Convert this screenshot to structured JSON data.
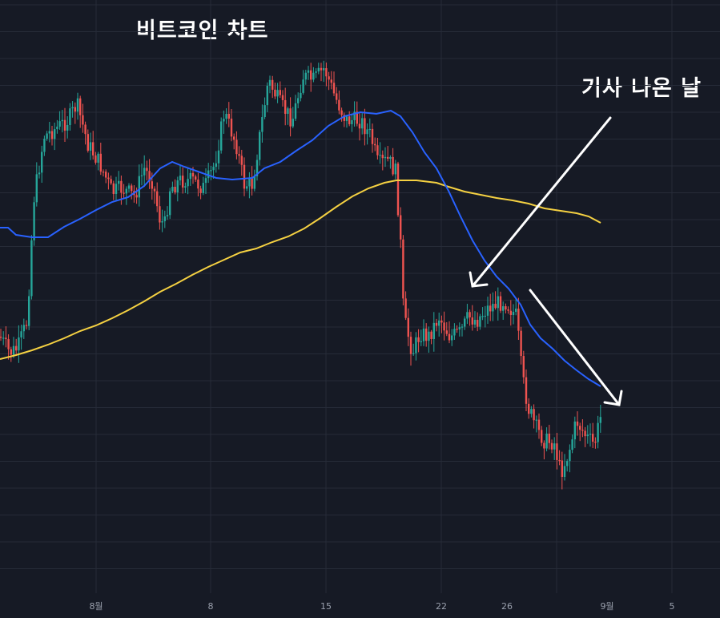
{
  "chart_data": {
    "type": "candlestick",
    "title": "비트코인 차트",
    "annotation": "기사 나온 날",
    "x_ticks": [
      "8월",
      "8",
      "15",
      "22",
      "26",
      "9월",
      "5"
    ],
    "grid": true,
    "colors": {
      "background": "#161a25",
      "grid": "#262b38",
      "up": "#26a69a",
      "down": "#ef5350",
      "ma_fast": "#2962ff",
      "ma_slow": "#f5d142",
      "arrow": "#ffffff"
    },
    "series": [
      {
        "name": "",
        "kind": "moving-average-fast",
        "color": "#2962ff"
      },
      {
        "name": "",
        "kind": "moving-average-slow",
        "color": "#f5d142"
      }
    ]
  }
}
